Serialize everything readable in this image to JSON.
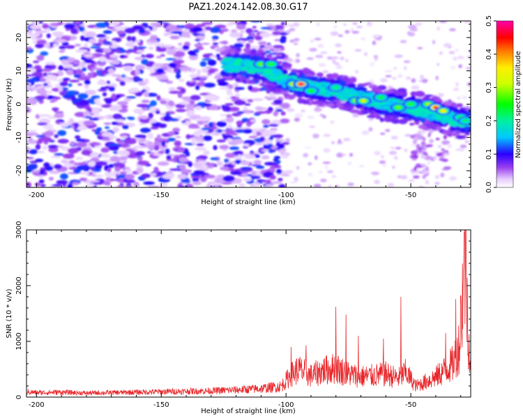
{
  "title": "PAZ1.2024.142.08.30.G17",
  "chart_data": [
    {
      "type": "heatmap",
      "xlabel": "Height of straight line (km)",
      "ylabel": "Frequency (Hz)",
      "xlim": [
        -204,
        -26
      ],
      "ylim": [
        -25,
        25
      ],
      "xticks": [
        -200,
        -150,
        -100,
        -50
      ],
      "yticks": [
        -20,
        -10,
        0,
        10,
        20
      ],
      "colorbar": {
        "label": "Normalized spectral amplitude",
        "range": [
          0.0,
          0.5
        ],
        "ticks": [
          0.0,
          0.1,
          0.2,
          0.3,
          0.4,
          0.5
        ]
      },
      "ridge": {
        "x": [
          -125,
          -110,
          -100,
          -90,
          -80,
          -70,
          -60,
          -50,
          -40,
          -30
        ],
        "y": [
          12,
          11,
          7,
          5,
          4,
          2,
          0,
          -1,
          -3,
          -5
        ]
      },
      "peak_points": [
        {
          "x": -110,
          "y": 12,
          "value": 0.28
        },
        {
          "x": -106,
          "y": 12,
          "value": 0.26
        },
        {
          "x": -97,
          "y": 6,
          "value": 0.35
        },
        {
          "x": -94,
          "y": 6,
          "value": 0.48
        },
        {
          "x": -90,
          "y": 4,
          "value": 0.25
        },
        {
          "x": -80,
          "y": 5,
          "value": 0.22
        },
        {
          "x": -72,
          "y": 1,
          "value": 0.3
        },
        {
          "x": -69,
          "y": 1,
          "value": 0.34
        },
        {
          "x": -62,
          "y": 2,
          "value": 0.24
        },
        {
          "x": -55,
          "y": -1,
          "value": 0.28
        },
        {
          "x": -50,
          "y": 0,
          "value": 0.26
        },
        {
          "x": -43,
          "y": 0,
          "value": 0.3
        },
        {
          "x": -40,
          "y": -1,
          "value": 0.45
        },
        {
          "x": -37,
          "y": -2,
          "value": 0.36
        },
        {
          "x": -30,
          "y": -4,
          "value": 0.25
        },
        {
          "x": -28,
          "y": -5,
          "value": 0.22
        }
      ]
    },
    {
      "type": "line",
      "xlabel": "Height of straight line (km)",
      "ylabel": "SNR (10 * v/v)",
      "xlim": [
        -204,
        -26
      ],
      "ylim": [
        0,
        3000
      ],
      "xticks": [
        -200,
        -150,
        -100,
        -50
      ],
      "yticks": [
        0,
        1000,
        2000,
        3000
      ],
      "series": [
        {
          "color": "#e8262a",
          "x": [
            -204,
            -200,
            -190,
            -180,
            -170,
            -160,
            -150,
            -140,
            -130,
            -120,
            -110,
            -102,
            -98,
            -95,
            -90,
            -85,
            -80,
            -75,
            -70,
            -65,
            -60,
            -55,
            -52,
            -48,
            -45,
            -40,
            -36,
            -33,
            -30,
            -29,
            -28,
            -27,
            -26
          ],
          "y": [
            120,
            100,
            110,
            90,
            100,
            110,
            120,
            130,
            140,
            160,
            190,
            240,
            500,
            620,
            480,
            600,
            650,
            520,
            460,
            480,
            520,
            420,
            560,
            250,
            320,
            450,
            620,
            760,
            1250,
            2800,
            3000,
            1500,
            500
          ]
        }
      ],
      "spikes": [
        {
          "x": -98,
          "y": 900
        },
        {
          "x": -92,
          "y": 930
        },
        {
          "x": -80,
          "y": 1620
        },
        {
          "x": -76,
          "y": 1480
        },
        {
          "x": -71,
          "y": 1100
        },
        {
          "x": -61,
          "y": 1050
        },
        {
          "x": -54,
          "y": 1800
        },
        {
          "x": -36,
          "y": 1150
        },
        {
          "x": -32,
          "y": 1760
        },
        {
          "x": -30,
          "y": 1820
        },
        {
          "x": -28,
          "y": 3000
        }
      ]
    }
  ]
}
